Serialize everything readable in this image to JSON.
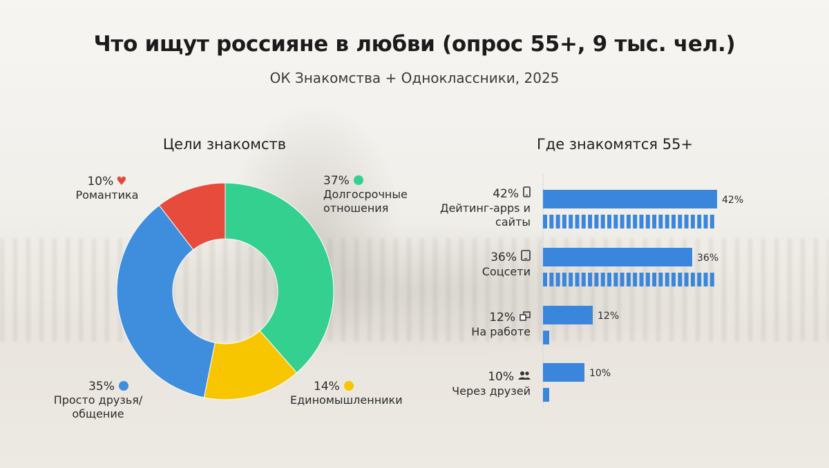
{
  "title": "Что ищут россияне в любви (опрос 55+, 9 тыс. чел.)",
  "subtitle": "ОК Знакомства + Одноклассники, 2025",
  "chart_data": [
    {
      "type": "pie",
      "title": "Цели знакомств",
      "categories": [
        "Долгосрочные отношения",
        "Единомышленники",
        "Просто друзья/ общение",
        "Романтика"
      ],
      "values": [
        37,
        14,
        35,
        10
      ],
      "labels": [
        "37%",
        "14%",
        "35%",
        "10%"
      ],
      "colors": [
        "#34d08f",
        "#f7c600",
        "#3f8ede",
        "#e64b3c"
      ],
      "icons": [
        "green-dot",
        "yellow-dot",
        "blue-dot",
        "heart-icon"
      ]
    },
    {
      "type": "bar",
      "title": "Где знакомятся 55+",
      "categories": [
        "Дейтинг-apps и сайты",
        "Соцсети",
        "На работе",
        "Через друзей"
      ],
      "values": [
        42,
        36,
        12,
        10
      ],
      "labels": [
        "42%",
        "36%",
        "12%",
        "10%"
      ],
      "icons": [
        "phone-icon",
        "tablet-icon",
        "office-icon",
        "people-icon"
      ],
      "color": "#3a86dc"
    }
  ],
  "donut_labels": {
    "long_term_pct": "37%",
    "long_term_label": "Долгосрочные отношения",
    "like_minded_pct": "14%",
    "like_minded_label": "Единомышленники",
    "friends_pct": "35%",
    "friends_label": "Просто друзья/ общение",
    "romance_pct": "10%",
    "romance_label": "Романтика"
  },
  "bar_labels": {
    "dating_pct": "42%",
    "dating_label": "Дейтинг-apps и сайты",
    "social_pct": "36%",
    "social_label": "Соцсети",
    "work_pct": "12%",
    "work_label": "На работе",
    "friends_pct": "10%",
    "friends_label": "Через друзей"
  }
}
